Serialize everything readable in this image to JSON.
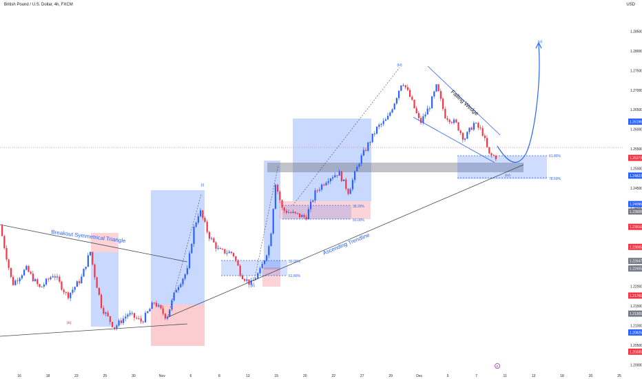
{
  "header": {
    "symbol": "British Pound / U.S. Dollar, 4h, FXCM",
    "currency": "USD"
  },
  "chart_data": {
    "type": "candlestick",
    "x_ticks": [
      "16",
      "18",
      "23",
      "25",
      "30",
      "Nov",
      "6",
      "8",
      "13",
      "15",
      "20",
      "22",
      "27",
      "29",
      "Dec",
      "5",
      "7",
      "11",
      "13",
      "18",
      "20",
      "25"
    ],
    "y_ticks": [
      "1.28500",
      "1.28000",
      "1.27500",
      "1.27000",
      "1.26500",
      "1.26000",
      "1.25500",
      "1.25000",
      "1.24500",
      "1.24000",
      "1.23500",
      "1.23000",
      "1.22500",
      "1.22000",
      "1.21500",
      "1.21000",
      "1.20500",
      "1.20000"
    ],
    "ylim": [
      1.1985,
      1.2905
    ],
    "price_badges": [
      {
        "text": "1.26196",
        "color": "#2962ff"
      },
      {
        "text": "1.25273",
        "color": "#f23645"
      },
      {
        "text": "1.24822",
        "color": "#2962ff"
      },
      {
        "text": "1.24096",
        "color": "#2962ff"
      },
      {
        "text": "1.23908",
        "color": "#787b86"
      },
      {
        "text": "1.23516",
        "color": "#f23645"
      },
      {
        "text": "1.23005",
        "color": "#f23645"
      },
      {
        "text": "1.22647",
        "color": "#787b86"
      },
      {
        "text": "1.22455",
        "color": "#787b86"
      },
      {
        "text": "1.21765",
        "color": "#f23645"
      },
      {
        "text": "1.21305",
        "color": "#787b86"
      },
      {
        "text": "1.20825",
        "color": "#2962ff"
      },
      {
        "text": "1.20335",
        "color": "#f23645"
      }
    ],
    "annotations": {
      "triangle": "Breakout Symmetrical Triangle",
      "trendline": "Ascending Trendline",
      "wedge": "Falling Wedge",
      "wave_b": "(b)",
      "wave_i": "(i)",
      "wave_ii": "(ii)",
      "wave_iii": "(iii)",
      "wave_iv": "(iv)",
      "wave_v": "(v)",
      "fib_382": "38.20%",
      "fib_50a": "50.00%",
      "fib_50b": "50.00%",
      "fib_618a": "61.80%",
      "fib_618b": "61.80%",
      "fib_786": "78.60%",
      "event_marker": "E"
    },
    "colors": {
      "up": "#2962ff",
      "down": "#f23645"
    },
    "last_price": 1.25273
  }
}
